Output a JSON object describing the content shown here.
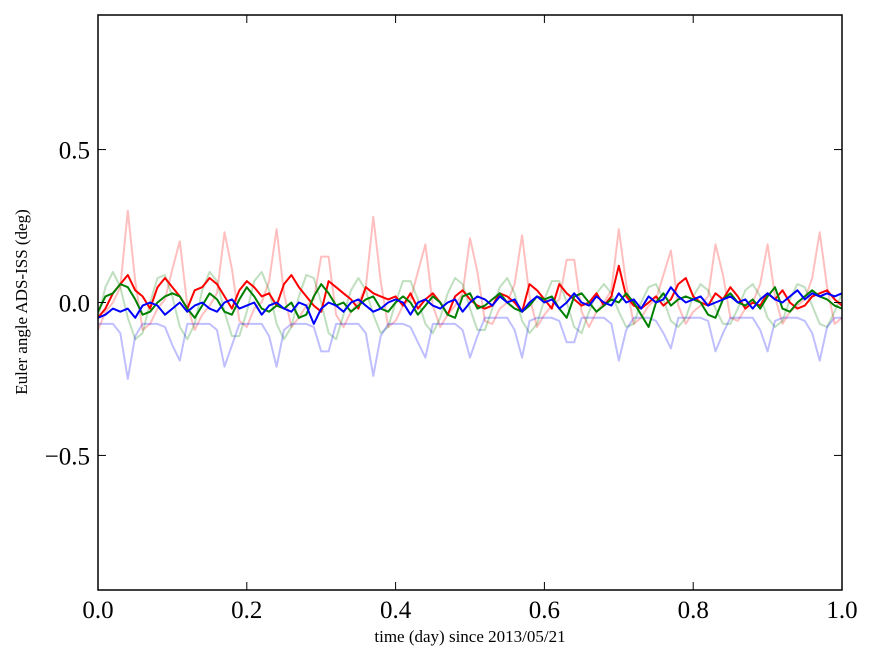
{
  "chart_data": {
    "type": "line",
    "title": "",
    "xlabel": "time (day) since 2013/05/21",
    "ylabel": "Euler angle ADS-ISS (deg)",
    "xlim": [
      0.0,
      1.0
    ],
    "ylim": [
      -0.94,
      0.94
    ],
    "xticks": [
      0.0,
      0.2,
      0.4,
      0.6,
      0.8,
      1.0
    ],
    "xtick_labels": [
      "0.0",
      "0.2",
      "0.4",
      "0.6",
      "0.8",
      "1.0"
    ],
    "yticks": [
      -0.5,
      0.0,
      0.5
    ],
    "ytick_labels": [
      "−0.5",
      "0.0",
      "0.5"
    ],
    "grid": false,
    "legend": "none",
    "x": [
      0.0,
      0.01,
      0.02,
      0.03,
      0.04,
      0.05,
      0.06,
      0.07,
      0.08,
      0.09,
      0.1,
      0.11,
      0.12,
      0.13,
      0.14,
      0.15,
      0.16,
      0.17,
      0.18,
      0.19,
      0.2,
      0.21,
      0.22,
      0.23,
      0.24,
      0.25,
      0.26,
      0.27,
      0.28,
      0.29,
      0.3,
      0.31,
      0.32,
      0.33,
      0.34,
      0.35,
      0.36,
      0.37,
      0.38,
      0.39,
      0.4,
      0.41,
      0.42,
      0.43,
      0.44,
      0.45,
      0.46,
      0.47,
      0.48,
      0.49,
      0.5,
      0.51,
      0.52,
      0.53,
      0.54,
      0.55,
      0.56,
      0.57,
      0.58,
      0.59,
      0.6,
      0.61,
      0.62,
      0.63,
      0.64,
      0.65,
      0.66,
      0.67,
      0.68,
      0.69,
      0.7,
      0.71,
      0.72,
      0.73,
      0.74,
      0.75,
      0.76,
      0.77,
      0.78,
      0.79,
      0.8,
      0.81,
      0.82,
      0.83,
      0.84,
      0.85,
      0.86,
      0.87,
      0.88,
      0.89,
      0.9,
      0.91,
      0.92,
      0.93,
      0.94,
      0.95,
      0.96,
      0.97,
      0.98,
      0.99,
      1.0
    ],
    "series": [
      {
        "color": "#ff0000",
        "alpha": 0.25,
        "values": [
          -0.09,
          -0.03,
          0,
          0.05,
          0.3,
          0.07,
          -0.09,
          -0.07,
          -0.02,
          0.01,
          0.11,
          0.2,
          -0.01,
          -0.09,
          -0.04,
          -0.01,
          0.03,
          0.23,
          0.11,
          -0.06,
          -0.08,
          -0.02,
          0,
          0.07,
          0.24,
          0.03,
          -0.08,
          -0.05,
          -0.01,
          0.01,
          0.15,
          0.15,
          -0.04,
          -0.08,
          -0.03,
          0,
          0.05,
          0.28,
          0.07,
          -0.08,
          -0.06,
          -0.01,
          0.01,
          0.1,
          0.19,
          -0.01,
          -0.08,
          -0.04,
          -0.01,
          0.03,
          0.21,
          0.1,
          -0.06,
          -0.07,
          -0.02,
          0,
          0.06,
          0.22,
          0.02,
          -0.08,
          -0.04,
          -0.01,
          0.01,
          0.14,
          0.14,
          -0.03,
          -0.08,
          -0.03,
          0,
          0.04,
          0.24,
          0.06,
          -0.07,
          -0.05,
          -0.01,
          0.01,
          0.09,
          0.17,
          -0.01,
          -0.07,
          -0.03,
          -0.01,
          0.02,
          0.19,
          0.09,
          -0.05,
          -0.06,
          -0.02,
          0,
          0.06,
          0.19,
          0.02,
          -0.07,
          -0.03,
          -0.01,
          0.01,
          0.08,
          0.23,
          0.05,
          -0.07,
          -0.05
        ]
      },
      {
        "color": "#008000",
        "alpha": 0.25,
        "values": [
          -0.05,
          0.05,
          0.1,
          0.05,
          -0.05,
          -0.12,
          -0.1,
          0,
          0.08,
          0.09,
          0.02,
          -0.08,
          -0.12,
          -0.07,
          0.04,
          0.1,
          0.07,
          -0.03,
          -0.11,
          -0.11,
          -0.03,
          0.07,
          0.1,
          0.04,
          -0.07,
          -0.12,
          -0.08,
          0.02,
          0.09,
          0.08,
          0,
          -0.1,
          -0.12,
          -0.04,
          0.04,
          0.08,
          0.04,
          -0.04,
          -0.1,
          -0.08,
          0,
          0.07,
          0.07,
          0.01,
          -0.07,
          -0.1,
          -0.05,
          0.03,
          0.08,
          0.06,
          -0.02,
          -0.09,
          -0.09,
          -0.02,
          0.05,
          0.08,
          0.03,
          -0.06,
          -0.1,
          -0.07,
          0.01,
          0.07,
          0.07,
          0,
          -0.08,
          -0.1,
          -0.03,
          0.03,
          0.06,
          0.03,
          -0.03,
          -0.08,
          -0.07,
          0,
          0.05,
          0.06,
          0.01,
          -0.06,
          -0.08,
          -0.05,
          0.02,
          0.06,
          0.04,
          -0.02,
          -0.07,
          -0.07,
          -0.02,
          0.04,
          0.06,
          0.02,
          -0.05,
          -0.08,
          -0.06,
          0.01,
          0.06,
          0.05,
          -0.01,
          -0.07,
          -0.08,
          -0.03,
          0.03
        ]
      },
      {
        "color": "#0000ff",
        "alpha": 0.25,
        "values": [
          -0.07,
          -0.07,
          -0.07,
          -0.1,
          -0.25,
          -0.11,
          -0.07,
          -0.07,
          -0.07,
          -0.08,
          -0.14,
          -0.19,
          -0.07,
          -0.07,
          -0.07,
          -0.07,
          -0.09,
          -0.21,
          -0.14,
          -0.07,
          -0.07,
          -0.07,
          -0.07,
          -0.11,
          -0.21,
          -0.09,
          -0.07,
          -0.07,
          -0.07,
          -0.08,
          -0.16,
          -0.16,
          -0.07,
          -0.07,
          -0.07,
          -0.07,
          -0.1,
          -0.24,
          -0.11,
          -0.07,
          -0.07,
          -0.07,
          -0.08,
          -0.13,
          -0.18,
          -0.07,
          -0.07,
          -0.07,
          -0.07,
          -0.09,
          -0.18,
          -0.11,
          -0.05,
          -0.05,
          -0.05,
          -0.05,
          -0.09,
          -0.18,
          -0.06,
          -0.05,
          -0.05,
          -0.05,
          -0.06,
          -0.13,
          -0.13,
          -0.05,
          -0.05,
          -0.05,
          -0.05,
          -0.07,
          -0.19,
          -0.09,
          -0.05,
          -0.05,
          -0.05,
          -0.06,
          -0.1,
          -0.15,
          -0.05,
          -0.05,
          -0.05,
          -0.05,
          -0.06,
          -0.16,
          -0.1,
          -0.05,
          -0.05,
          -0.05,
          -0.05,
          -0.09,
          -0.16,
          -0.06,
          -0.05,
          -0.05,
          -0.05,
          -0.06,
          -0.1,
          -0.19,
          -0.08,
          -0.05,
          -0.05
        ]
      },
      {
        "color": "#ff0000",
        "alpha": 1,
        "values": [
          -0.05,
          -0.02,
          0.03,
          0.06,
          0.09,
          0.04,
          0.02,
          -0.02,
          0.05,
          0.08,
          0.05,
          0.02,
          -0.02,
          0.04,
          0.05,
          0.08,
          0.06,
          0.02,
          -0.02,
          0.04,
          0.07,
          0.05,
          0.02,
          0.03,
          -0.01,
          0.06,
          0.09,
          0.05,
          0.02,
          -0.01,
          -0.03,
          0.07,
          0.05,
          0.03,
          0.01,
          -0.02,
          0.05,
          0.03,
          0.02,
          0.01,
          0.02,
          -0.01,
          0.03,
          -0.02,
          0.01,
          0.03,
          0,
          -0.04,
          0.02,
          0.04,
          0.01,
          -0.01,
          -0.02,
          -0.01,
          0.03,
          0.02,
          0,
          -0.03,
          0.06,
          0.04,
          0.01,
          -0.02,
          0.06,
          0.03,
          0.01,
          -0.01,
          0,
          0.03,
          -0.01,
          0.02,
          0.12,
          0.02,
          -0.01,
          -0.02,
          0,
          0.02,
          -0.01,
          0.01,
          0.06,
          0.08,
          0.02,
          0,
          -0.01,
          0.03,
          0.01,
          0.05,
          0.02,
          -0.02,
          0,
          -0.01,
          0.03,
          0.01,
          0.04,
          0,
          -0.02,
          -0.01,
          0.02,
          0.03,
          0.04,
          0.01,
          -0.01
        ]
      },
      {
        "color": "#008000",
        "alpha": 1,
        "values": [
          -0.03,
          0.02,
          0.03,
          0.06,
          0.05,
          0.01,
          -0.04,
          -0.03,
          0,
          0.02,
          0.03,
          0.02,
          -0.02,
          -0.05,
          -0.01,
          0.03,
          0.01,
          -0.03,
          -0.04,
          0.01,
          0.05,
          0.02,
          -0.02,
          -0.03,
          -0.01,
          -0.02,
          0,
          -0.05,
          -0.04,
          0.02,
          0.06,
          0.03,
          -0.01,
          0,
          -0.03,
          -0.01,
          0.01,
          0.02,
          -0.02,
          -0.03,
          0,
          0.02,
          0,
          -0.04,
          -0.01,
          0.02,
          0,
          -0.04,
          -0.05,
          0.02,
          0.03,
          -0.02,
          -0.01,
          0.01,
          0.03,
          0,
          -0.02,
          -0.03,
          -0.01,
          0.02,
          0.01,
          0.02,
          -0.02,
          -0.05,
          0.02,
          0.03,
          0,
          -0.03,
          -0.01,
          0.01,
          0,
          0.03,
          0,
          -0.04,
          -0.08,
          0,
          0.03,
          -0.01,
          0.01,
          0.02,
          0.01,
          0,
          -0.04,
          -0.05,
          0.01,
          0.03,
          0,
          -0.01,
          0.01,
          -0.02,
          0.02,
          0.05,
          -0.02,
          -0.03,
          0,
          0.02,
          0.04,
          0.02,
          0.01,
          -0.01,
          -0.02
        ]
      },
      {
        "color": "#0000ff",
        "alpha": 1,
        "values": [
          -0.05,
          -0.04,
          -0.02,
          -0.03,
          -0.02,
          -0.05,
          -0.01,
          0,
          -0.01,
          -0.04,
          -0.02,
          0,
          -0.03,
          -0.01,
          0,
          -0.02,
          -0.03,
          0,
          0.01,
          -0.02,
          -0.01,
          0,
          -0.04,
          -0.01,
          0,
          -0.02,
          -0.03,
          0,
          -0.01,
          -0.07,
          -0.02,
          0,
          -0.01,
          -0.03,
          0,
          0.01,
          -0.01,
          -0.03,
          -0.02,
          0,
          0.01,
          0,
          -0.04,
          0,
          0.01,
          -0.01,
          -0.02,
          0,
          0.01,
          -0.03,
          0,
          0.02,
          0.01,
          -0.01,
          0.02,
          0,
          0.01,
          -0.03,
          0,
          0.02,
          0,
          0.01,
          -0.02,
          0,
          0.03,
          0,
          -0.01,
          0.02,
          0,
          -0.01,
          0.03,
          0,
          0.01,
          -0.02,
          0.02,
          0,
          0.01,
          0.05,
          0.02,
          0,
          0.01,
          0.02,
          -0.01,
          0,
          0.01,
          0.02,
          0,
          0.01,
          -0.02,
          0.01,
          0.03,
          0.01,
          0,
          0.02,
          0.04,
          0.01,
          0.03,
          0.02,
          0.03,
          0.02,
          0.03
        ]
      }
    ]
  }
}
